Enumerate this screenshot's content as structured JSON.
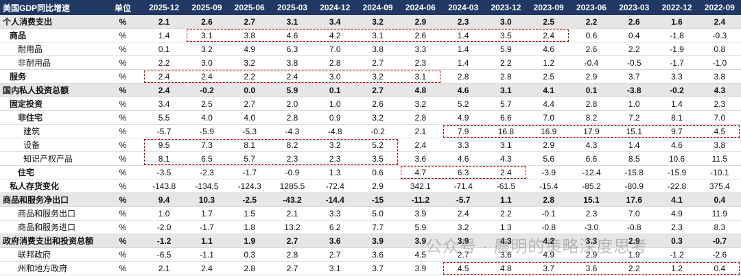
{
  "table": {
    "header": [
      "美国GDP同比增速",
      "单位",
      "2025-12",
      "2025-09",
      "2025-06",
      "2025-03",
      "2024-12",
      "2024-09",
      "2024-06",
      "2024-03",
      "2023-12",
      "2023-09",
      "2023-06",
      "2023-03",
      "2022-12",
      "2022-09"
    ],
    "rows": [
      [
        "个人消费支出",
        "%",
        "2.1",
        "2.6",
        "2.7",
        "3.1",
        "3.4",
        "3.2",
        "2.9",
        "2.3",
        "3.0",
        "2.5",
        "2.2",
        "2.6",
        "1.6",
        "2.4"
      ],
      [
        "商品",
        "%",
        "1.4",
        "3.1",
        "3.8",
        "4.6",
        "4.2",
        "3.1",
        "2.6",
        "1.4",
        "3.5",
        "2.4",
        "0.6",
        "0.4",
        "-1.8",
        "-0.3"
      ],
      [
        "耐用品",
        "%",
        "0.1",
        "3.2",
        "4.9",
        "6.3",
        "7.0",
        "3.8",
        "3.3",
        "1.4",
        "5.9",
        "4.6",
        "2.6",
        "2.2",
        "-1.9",
        "0.8"
      ],
      [
        "非耐用品",
        "%",
        "2.2",
        "3.0",
        "3.2",
        "3.8",
        "2.8",
        "2.7",
        "2.3",
        "1.4",
        "2.2",
        "1.2",
        "-0.4",
        "-0.5",
        "-1.7",
        "-1.0"
      ],
      [
        "服务",
        "%",
        "2.4",
        "2.4",
        "2.2",
        "2.4",
        "3.0",
        "3.2",
        "3.1",
        "2.8",
        "2.8",
        "2.5",
        "2.9",
        "3.7",
        "3.3",
        "3.8"
      ],
      [
        "国内私人投资总额",
        "%",
        "2.4",
        "-0.2",
        "0.0",
        "5.9",
        "0.1",
        "2.7",
        "4.8",
        "4.6",
        "3.1",
        "4.1",
        "0.1",
        "-3.8",
        "-0.2",
        "4.3"
      ],
      [
        "固定投资",
        "%",
        "3.4",
        "2.5",
        "2.7",
        "2.0",
        "1.0",
        "2.6",
        "3.2",
        "5.2",
        "5.7",
        "4.4",
        "2.8",
        "1.0",
        "1.4",
        "2.3"
      ],
      [
        "非住宅",
        "%",
        "5.5",
        "4.0",
        "4.0",
        "2.8",
        "0.9",
        "3.2",
        "2.8",
        "4.9",
        "6.6",
        "7.0",
        "8.2",
        "7.2",
        "8.1",
        "7.0"
      ],
      [
        "建筑",
        "%",
        "-5.7",
        "-5.9",
        "-5.3",
        "-4.3",
        "-4.8",
        "-0.2",
        "2.1",
        "7.9",
        "16.8",
        "16.9",
        "17.9",
        "15.1",
        "9.7",
        "4.5"
      ],
      [
        "设备",
        "%",
        "9.5",
        "7.3",
        "8.1",
        "8.2",
        "3.2",
        "5.2",
        "2.4",
        "3.3",
        "3.1",
        "2.9",
        "4.3",
        "1.4",
        "4.6",
        "3.8"
      ],
      [
        "知识产权产品",
        "%",
        "8.1",
        "6.5",
        "5.7",
        "2.3",
        "2.3",
        "3.5",
        "3.6",
        "4.6",
        "4.3",
        "5.6",
        "6.6",
        "8.5",
        "10.6",
        "11.5"
      ],
      [
        "住宅",
        "%",
        "-3.5",
        "-2.3",
        "-1.7",
        "-0.9",
        "1.3",
        "0.6",
        "4.7",
        "6.3",
        "2.4",
        "-3.9",
        "-12.4",
        "-15.8",
        "-15.9",
        "-10.1"
      ],
      [
        "私人存货变化",
        "%",
        "-143.8",
        "-134.5",
        "-124.3",
        "1285.5",
        "-72.4",
        "2.9",
        "342.1",
        "-71.4",
        "-61.5",
        "-15.4",
        "-85.2",
        "-80.9",
        "-22.8",
        "375.4"
      ],
      [
        "商品和服务净出口",
        "%",
        "9.4",
        "10.3",
        "-2.5",
        "-43.2",
        "-14.4",
        "-15",
        "-11.2",
        "-5.7",
        "1.1",
        "2.8",
        "15.1",
        "17.6",
        "4.1",
        "0.4"
      ],
      [
        "商品和服务出口",
        "%",
        "1.0",
        "1.7",
        "1.5",
        "2.1",
        "3.3",
        "5.0",
        "3.9",
        "2.4",
        "2.2",
        "-0.1",
        "2.3",
        "7.0",
        "4.9",
        "11.9"
      ],
      [
        "商品和服务进口",
        "%",
        "-2.0",
        "-1.7",
        "1.8",
        "13.2",
        "6.2",
        "7.7",
        "5.9",
        "3.2",
        "1.3",
        "-0.8",
        "-3.0",
        "-0.8",
        "2.3",
        "8.3"
      ],
      [
        "政府消费支出和投资总额",
        "%",
        "-1.2",
        "1.1",
        "1.9",
        "2.7",
        "3.6",
        "3.9",
        "3.9",
        "3.9",
        "4.3",
        "4.2",
        "3.3",
        "2.9",
        "0.3",
        "-0.7"
      ],
      [
        "联邦政府",
        "%",
        "-6.5",
        "-1.1",
        "0.3",
        "2.8",
        "2.7",
        "3.6",
        "4.5",
        "2.7",
        "3.6",
        "4.9",
        "2.9",
        "1.9",
        "-1.2",
        "-2.6"
      ],
      [
        "州和地方政府",
        "%",
        "2.1",
        "2.4",
        "2.8",
        "2.7",
        "3.1",
        "3.7",
        "3.9",
        "4.5",
        "4.8",
        "3.7",
        "3.6",
        "2.2",
        "1.2",
        "0.4"
      ]
    ]
  },
  "watermark": "公众号 · 晨明的策略深度思考"
}
